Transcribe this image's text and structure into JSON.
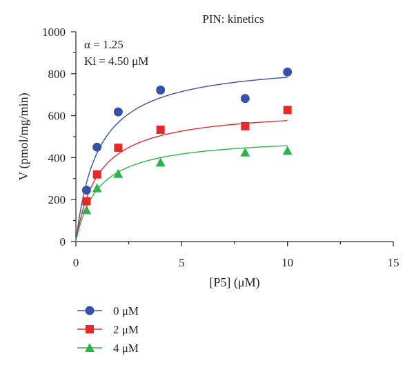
{
  "chart_data": {
    "type": "scatter",
    "title": "PIN: kinetics",
    "xlabel": "[P5] (μM)",
    "ylabel": "V (pmol/mg/min)",
    "xlim": [
      0,
      15
    ],
    "ylim": [
      0,
      1000
    ],
    "x_ticks": [
      0,
      5,
      10,
      15
    ],
    "y_ticks": [
      0,
      200,
      400,
      600,
      800,
      1000
    ],
    "x_tick_labels": [
      "0",
      "5",
      "10",
      "15"
    ],
    "y_tick_labels": [
      "0",
      "200",
      "400",
      "600",
      "800",
      "1000"
    ],
    "annotations": [
      "α = 1.25",
      "Ki = 4.50 μM"
    ],
    "grid": false,
    "legend_position": "bottom-left",
    "series": [
      {
        "name": "0 μM",
        "marker": "circle",
        "color": "#3651a8",
        "x": [
          0.5,
          1,
          2,
          4,
          8,
          10
        ],
        "y": [
          245,
          450,
          618,
          722,
          682,
          808
        ],
        "fit": {
          "vmax": 865,
          "km": 1.05
        }
      },
      {
        "name": "2 μM",
        "marker": "square",
        "color": "#e8282a",
        "x": [
          0.5,
          1,
          2,
          4,
          8,
          10
        ],
        "y": [
          192,
          320,
          447,
          533,
          550,
          627
        ],
        "fit": {
          "vmax": 637,
          "km": 1.05
        }
      },
      {
        "name": "4 μM",
        "marker": "triangle",
        "color": "#2eb34a",
        "x": [
          0.5,
          1,
          2,
          4,
          8,
          10
        ],
        "y": [
          150,
          255,
          323,
          377,
          425,
          433
        ],
        "fit": {
          "vmax": 505,
          "km": 1.05
        }
      }
    ]
  }
}
